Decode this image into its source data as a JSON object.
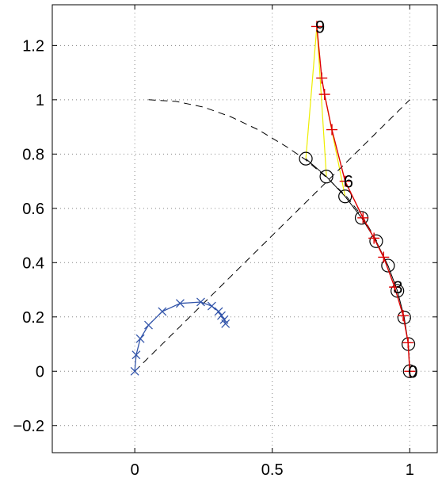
{
  "chart_data": {
    "type": "line",
    "title": "",
    "xlabel": "",
    "ylabel": "",
    "xlim": [
      -0.3,
      1.1
    ],
    "ylim": [
      -0.3,
      1.35
    ],
    "grid": true,
    "x_ticks": [
      0,
      0.5,
      1
    ],
    "x_tick_labels": [
      "0",
      "0.5",
      "1"
    ],
    "y_ticks": [
      -0.2,
      0,
      0.2,
      0.4,
      0.6,
      0.8,
      1,
      1.2
    ],
    "y_tick_labels": [
      "−0.2",
      "0",
      "0.2",
      "0.4",
      "0.6",
      "0.8",
      "1",
      "1.2"
    ],
    "colors": {
      "blue": "#3355aa",
      "red": "#dd0000",
      "yellow": "#eeee00",
      "black": "#000000",
      "grid": "#888888"
    },
    "series": [
      {
        "style": "dashed-black",
        "points": [
          [
            0.05,
            1.0
          ],
          [
            0.15,
            0.994
          ],
          [
            0.25,
            0.973
          ],
          [
            0.35,
            0.937
          ],
          [
            0.45,
            0.889
          ],
          [
            0.55,
            0.828
          ],
          [
            0.62,
            0.78
          ],
          [
            0.7,
            0.712
          ],
          [
            0.77,
            0.644
          ],
          [
            0.83,
            0.567
          ],
          [
            0.88,
            0.479
          ]
        ]
      },
      {
        "style": "dashed-black",
        "points": [
          [
            0.0,
            0.0
          ],
          [
            1.0,
            1.0
          ]
        ]
      },
      {
        "style": "blue-x",
        "points": [
          [
            0.0,
            0.0
          ],
          [
            0.005,
            0.06
          ],
          [
            0.02,
            0.12
          ],
          [
            0.05,
            0.17
          ],
          [
            0.1,
            0.22
          ],
          [
            0.165,
            0.25
          ],
          [
            0.24,
            0.255
          ],
          [
            0.28,
            0.24
          ],
          [
            0.305,
            0.22
          ],
          [
            0.315,
            0.205
          ],
          [
            0.325,
            0.19
          ],
          [
            0.33,
            0.175
          ]
        ]
      },
      {
        "style": "black-circles",
        "points": [
          [
            1.0,
            0.0
          ],
          [
            0.995,
            0.1
          ],
          [
            0.98,
            0.198
          ],
          [
            0.955,
            0.296
          ],
          [
            0.921,
            0.389
          ],
          [
            0.878,
            0.479
          ],
          [
            0.825,
            0.565
          ],
          [
            0.765,
            0.644
          ],
          [
            0.697,
            0.717
          ],
          [
            0.622,
            0.783
          ]
        ]
      },
      {
        "style": "red-plus",
        "points": [
          [
            1.0,
            0.0
          ],
          [
            0.994,
            0.105
          ],
          [
            0.976,
            0.205
          ],
          [
            0.945,
            0.31
          ],
          [
            0.905,
            0.42
          ],
          [
            0.87,
            0.49
          ],
          [
            0.83,
            0.565
          ],
          [
            0.765,
            0.7
          ],
          [
            0.717,
            0.89
          ],
          [
            0.69,
            1.02
          ],
          [
            0.68,
            1.08
          ],
          [
            0.662,
            1.27
          ]
        ]
      }
    ],
    "yellow_links": [
      [
        [
          0.662,
          1.27
        ],
        [
          0.622,
          0.783
        ]
      ],
      [
        [
          0.662,
          1.27
        ],
        [
          0.697,
          0.717
        ]
      ],
      [
        [
          0.69,
          1.02
        ],
        [
          0.765,
          0.644
        ]
      ]
    ],
    "annotations": [
      {
        "text": "9",
        "x": 0.662,
        "y": 1.27
      },
      {
        "text": "6",
        "x": 0.765,
        "y": 0.7
      },
      {
        "text": "3",
        "x": 0.945,
        "y": 0.31
      },
      {
        "text": "0",
        "x": 1.0,
        "y": 0.0
      }
    ]
  }
}
